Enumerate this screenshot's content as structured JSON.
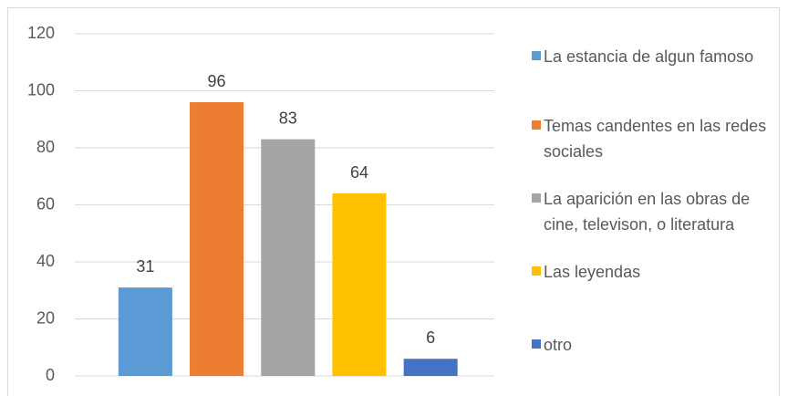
{
  "chart_data": {
    "type": "bar",
    "categories": [
      null
    ],
    "series": [
      {
        "name": "La estancia de algun famoso",
        "color": "#5b9bd5",
        "values": [
          31
        ]
      },
      {
        "name": "Temas candentes en las redes sociales",
        "color": "#ed7d31",
        "values": [
          96
        ]
      },
      {
        "name": "La aparición en las obras de cine, televison, o literatura",
        "color": "#a5a5a5",
        "values": [
          83
        ]
      },
      {
        "name": "Las leyendas",
        "color": "#ffc000",
        "values": [
          64
        ]
      },
      {
        "name": "otro",
        "color": "#4472c4",
        "values": [
          6
        ]
      }
    ],
    "ylim": [
      0,
      120
    ],
    "yticks": [
      0,
      20,
      40,
      60,
      80,
      100,
      120
    ],
    "grid": true,
    "legend": "right",
    "data_labels": true
  }
}
